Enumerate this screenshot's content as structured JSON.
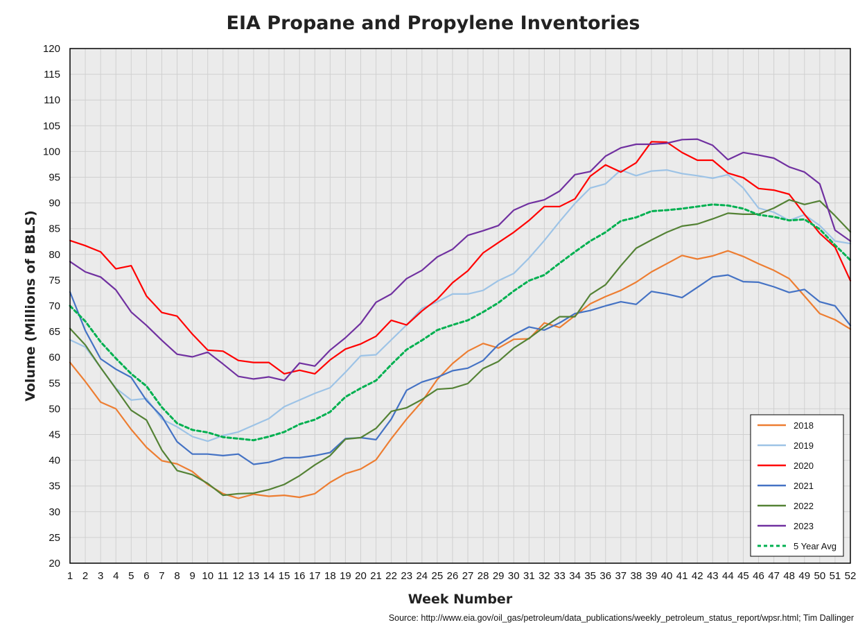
{
  "chart_data": {
    "type": "line",
    "title": "EIA Propane and Propylene Inventories",
    "xlabel": "Week Number",
    "ylabel": "Volume (Millions of BBLS)",
    "source": "Source: http://www.eia.gov/oil_gas/petroleum/data_publications/weekly_petroleum_status_report/wpsr.html; Tim Dallinger",
    "xlim": [
      1,
      52
    ],
    "ylim": [
      20,
      120
    ],
    "ytick_step": 5,
    "grid": true,
    "legend_position": "bottom-right",
    "x": [
      1,
      2,
      3,
      4,
      5,
      6,
      7,
      8,
      9,
      10,
      11,
      12,
      13,
      14,
      15,
      16,
      17,
      18,
      19,
      20,
      21,
      22,
      23,
      24,
      25,
      26,
      27,
      28,
      29,
      30,
      31,
      32,
      33,
      34,
      35,
      36,
      37,
      38,
      39,
      40,
      41,
      42,
      43,
      44,
      45,
      46,
      47,
      48,
      49,
      50,
      51,
      52
    ],
    "series": [
      {
        "name": "2018",
        "color": "#ED7D31",
        "dashed": false,
        "values": [
          59.0,
          55.3,
          51.3,
          50.0,
          46.0,
          42.5,
          39.9,
          39.3,
          37.8,
          35.3,
          33.5,
          32.6,
          33.4,
          33.0,
          33.2,
          32.8,
          33.5,
          35.7,
          37.4,
          38.3,
          40.1,
          44.2,
          48.0,
          51.4,
          55.7,
          58.8,
          61.2,
          62.7,
          61.8,
          63.5,
          63.6,
          66.7,
          65.8,
          68.1,
          70.4,
          71.8,
          73.0,
          74.6,
          76.6,
          78.2,
          79.8,
          79.1,
          79.7,
          80.7,
          79.6,
          78.2,
          76.9,
          75.3,
          71.9,
          68.5,
          67.3,
          65.5
        ]
      },
      {
        "name": "2019",
        "color": "#9DC3E6",
        "dashed": false,
        "values": [
          63.4,
          62.0,
          58.0,
          54.0,
          51.7,
          52.0,
          48.0,
          46.5,
          44.6,
          43.7,
          44.8,
          45.5,
          46.8,
          48.1,
          50.4,
          51.7,
          53.0,
          54.1,
          57.1,
          60.3,
          60.5,
          63.4,
          66.3,
          69.5,
          70.8,
          72.3,
          72.3,
          73.0,
          74.9,
          76.3,
          79.3,
          82.7,
          86.4,
          89.9,
          92.9,
          93.7,
          96.4,
          95.3,
          96.2,
          96.4,
          95.7,
          95.3,
          94.8,
          95.5,
          92.9,
          89.0,
          88.2,
          86.6,
          87.7,
          85.6,
          82.6,
          82.1
        ]
      },
      {
        "name": "2020",
        "color": "#FF0000",
        "dashed": false,
        "values": [
          82.7,
          81.7,
          80.5,
          77.2,
          77.8,
          71.9,
          68.7,
          68.0,
          64.5,
          61.4,
          61.2,
          59.4,
          59.0,
          59.0,
          56.8,
          57.5,
          56.8,
          59.5,
          61.6,
          62.6,
          64.1,
          67.2,
          66.3,
          69.0,
          71.3,
          74.5,
          76.8,
          80.3,
          82.3,
          84.3,
          86.6,
          89.3,
          89.3,
          90.8,
          95.2,
          97.4,
          96.0,
          97.8,
          101.9,
          101.8,
          99.8,
          98.3,
          98.3,
          95.8,
          94.9,
          92.8,
          92.5,
          91.7,
          87.8,
          84.1,
          81.4,
          74.9
        ]
      },
      {
        "name": "2021",
        "color": "#4472C4",
        "dashed": false,
        "values": [
          72.7,
          65.2,
          59.7,
          57.7,
          56.1,
          51.6,
          48.5,
          43.6,
          41.2,
          41.2,
          40.9,
          41.2,
          39.2,
          39.6,
          40.5,
          40.5,
          40.9,
          41.5,
          44.2,
          44.4,
          44.0,
          48.0,
          53.6,
          55.2,
          56.1,
          57.4,
          57.9,
          59.4,
          62.5,
          64.4,
          65.9,
          65.3,
          66.7,
          68.5,
          69.1,
          70.0,
          70.8,
          70.3,
          72.8,
          72.3,
          71.6,
          73.6,
          75.6,
          76.0,
          74.7,
          74.6,
          73.7,
          72.6,
          73.2,
          70.8,
          70.0,
          66.2
        ]
      },
      {
        "name": "2022",
        "color": "#548235",
        "dashed": false,
        "values": [
          65.6,
          62.4,
          58.0,
          53.9,
          49.7,
          47.8,
          42.0,
          38.0,
          37.2,
          35.5,
          33.2,
          33.5,
          33.6,
          34.3,
          35.3,
          37.0,
          39.1,
          40.9,
          44.1,
          44.4,
          46.2,
          49.5,
          50.2,
          51.8,
          53.8,
          54.0,
          54.9,
          57.8,
          59.2,
          61.8,
          63.7,
          65.9,
          67.9,
          67.9,
          72.2,
          74.1,
          77.8,
          81.2,
          82.8,
          84.3,
          85.5,
          85.9,
          86.9,
          88.0,
          87.8,
          87.8,
          89.0,
          90.6,
          89.7,
          90.4,
          87.5,
          84.4
        ]
      },
      {
        "name": "2023",
        "color": "#7030A0",
        "dashed": false,
        "values": [
          78.6,
          76.6,
          75.6,
          73.1,
          68.8,
          66.2,
          63.3,
          60.6,
          60.1,
          61.0,
          58.7,
          56.3,
          55.8,
          56.2,
          55.5,
          58.9,
          58.3,
          61.4,
          63.8,
          66.6,
          70.7,
          72.3,
          75.3,
          76.9,
          79.5,
          81.0,
          83.7,
          84.6,
          85.6,
          88.6,
          89.9,
          90.6,
          92.3,
          95.5,
          96.1,
          99.1,
          100.7,
          101.4,
          101.4,
          101.6,
          102.3,
          102.4,
          101.2,
          98.4,
          99.8,
          99.3,
          98.7,
          97.0,
          96.0,
          93.7,
          84.7,
          82.6
        ]
      },
      {
        "name": "5 Year Avg",
        "color": "#00B050",
        "dashed": true,
        "values": [
          70.0,
          67.0,
          63.0,
          59.8,
          56.8,
          54.4,
          50.3,
          47.2,
          45.9,
          45.4,
          44.5,
          44.2,
          43.9,
          44.6,
          45.5,
          47.0,
          47.9,
          49.4,
          52.3,
          54.0,
          55.5,
          58.6,
          61.5,
          63.3,
          65.3,
          66.3,
          67.2,
          68.8,
          70.6,
          72.9,
          74.9,
          76.0,
          78.3,
          80.5,
          82.6,
          84.3,
          86.5,
          87.2,
          88.4,
          88.6,
          88.9,
          89.3,
          89.7,
          89.5,
          88.9,
          87.7,
          87.3,
          86.6,
          86.8,
          84.9,
          81.8,
          78.9
        ]
      }
    ]
  }
}
